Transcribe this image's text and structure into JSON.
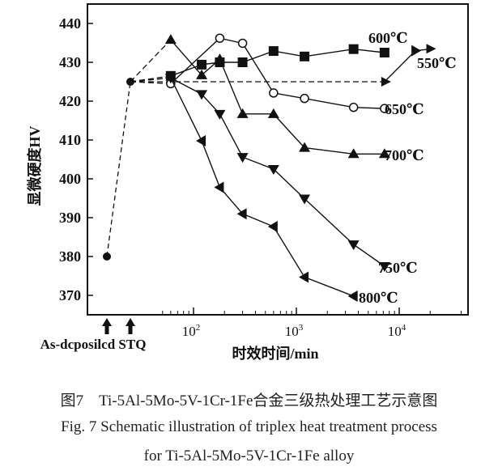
{
  "chart_data": {
    "type": "line",
    "xlabel": "时效时间/min",
    "ylabel": "显微硬度HV",
    "x_scale": "log",
    "xlim": [
      30,
      45000
    ],
    "ylim": [
      365,
      445
    ],
    "yticks": [
      370,
      380,
      390,
      400,
      410,
      420,
      430,
      440
    ],
    "xtick_labels": [
      {
        "value": 100,
        "base": "10",
        "exp": "2"
      },
      {
        "value": 1000,
        "base": "10",
        "exp": "3"
      },
      {
        "value": 10000,
        "base": "10",
        "exp": "4"
      }
    ],
    "grid": false,
    "pre_points": [
      {
        "label": "As-dcposilcd",
        "hv": 380
      },
      {
        "label": "STQ",
        "hv": 425
      }
    ],
    "series": [
      {
        "name": "600℃",
        "marker": "square",
        "x": [
          60,
          120,
          180,
          300,
          600,
          1200,
          3600,
          7200
        ],
        "y": [
          426.5,
          429.4,
          430,
          430,
          432.9,
          431.5,
          433.4,
          432.5
        ]
      },
      {
        "name": "550℃",
        "marker": "triangle-right",
        "x": [
          7200,
          14400
        ],
        "y": [
          425,
          433
        ],
        "arrow_to": [
          22000,
          433.5
        ]
      },
      {
        "name": "650℃",
        "marker": "circle-open",
        "x": [
          60,
          180,
          300,
          600,
          1200,
          3600,
          7200
        ],
        "y": [
          424.5,
          436.2,
          434.9,
          422.1,
          420.7,
          418.4,
          418.1
        ]
      },
      {
        "name": "700℃",
        "marker": "triangle-up",
        "x": [
          60,
          120,
          180,
          300,
          600,
          1200,
          3600,
          7200
        ],
        "y": [
          435.8,
          426.7,
          430.8,
          416.7,
          416.7,
          408,
          406.4,
          406.4
        ]
      },
      {
        "name": "750℃",
        "marker": "triangle-down",
        "x": [
          60,
          120,
          180,
          300,
          600,
          1200,
          3600,
          7200
        ],
        "y": [
          426,
          421.8,
          416.7,
          405.6,
          402.5,
          394.9,
          383.1,
          377.5
        ]
      },
      {
        "name": "800℃",
        "marker": "triangle-left",
        "x": [
          60,
          120,
          180,
          300,
          600,
          1200,
          3600
        ],
        "y": [
          426,
          409.8,
          397.8,
          391,
          387.7,
          374.7,
          369.8
        ]
      }
    ]
  },
  "caption": {
    "cn": "图7　Ti-5Al-5Mo-5V-1Cr-1Fe合金三级热处理工艺示意图",
    "en1": "Fig. 7 Schematic illustration of triplex heat treatment process",
    "en2": "for Ti-5Al-5Mo-5V-1Cr-1Fe alloy"
  }
}
